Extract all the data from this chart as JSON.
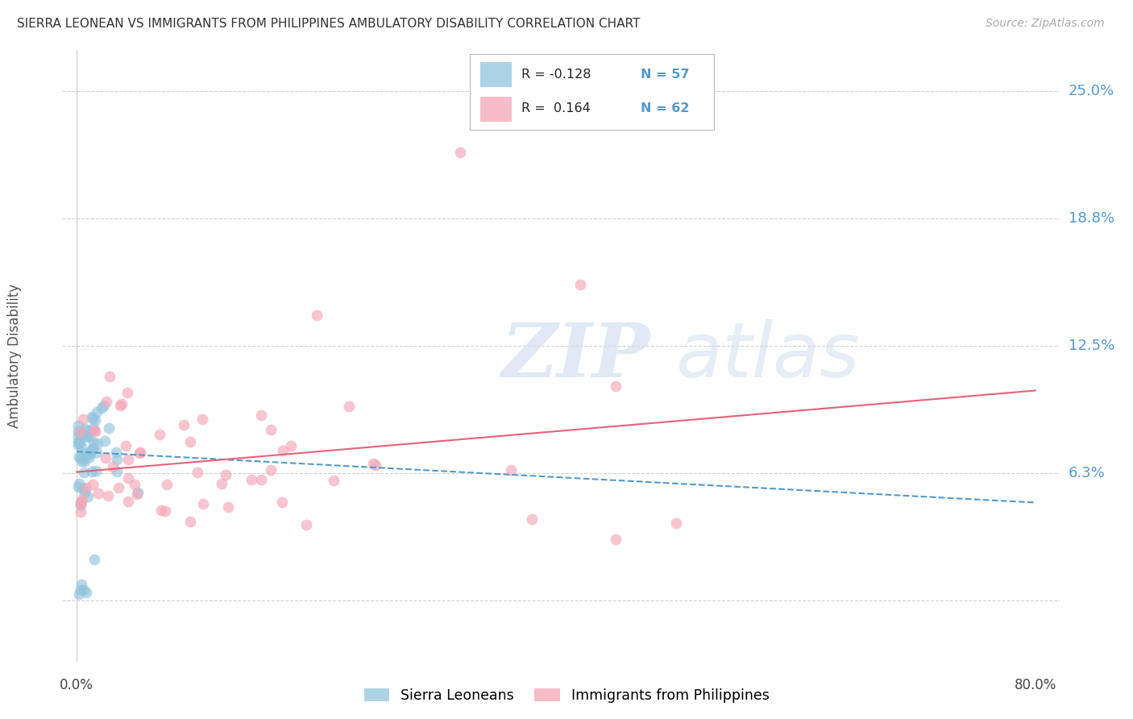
{
  "title": "SIERRA LEONEAN VS IMMIGRANTS FROM PHILIPPINES AMBULATORY DISABILITY CORRELATION CHART",
  "source": "Source: ZipAtlas.com",
  "ylabel": "Ambulatory Disability",
  "watermark_zip": "ZIP",
  "watermark_atlas": "atlas",
  "ytick_vals": [
    0.0,
    0.0625,
    0.125,
    0.1875,
    0.25
  ],
  "ytick_labels": [
    "",
    "6.3%",
    "12.5%",
    "18.8%",
    "25.0%"
  ],
  "xlim": [
    0.0,
    0.8
  ],
  "ylim": [
    -0.03,
    0.27
  ],
  "series1_color": "#92c5de",
  "series2_color": "#f4a6b8",
  "trend1_color": "#5599cc",
  "trend2_color": "#e8607a",
  "background_color": "#ffffff",
  "title_color": "#333333",
  "source_color": "#aaaaaa",
  "ytick_color": "#5599cc",
  "grid_color": "#cccccc",
  "legend_r1": "R = -0.128",
  "legend_n1": "N = 57",
  "legend_r2": "R =  0.164",
  "legend_n2": "N = 62",
  "trend1_x0": 0.0,
  "trend1_x1": 0.8,
  "trend1_y0": 0.073,
  "trend1_y1": 0.048,
  "trend2_x0": 0.0,
  "trend2_x1": 0.8,
  "trend2_y0": 0.063,
  "trend2_y1": 0.103
}
